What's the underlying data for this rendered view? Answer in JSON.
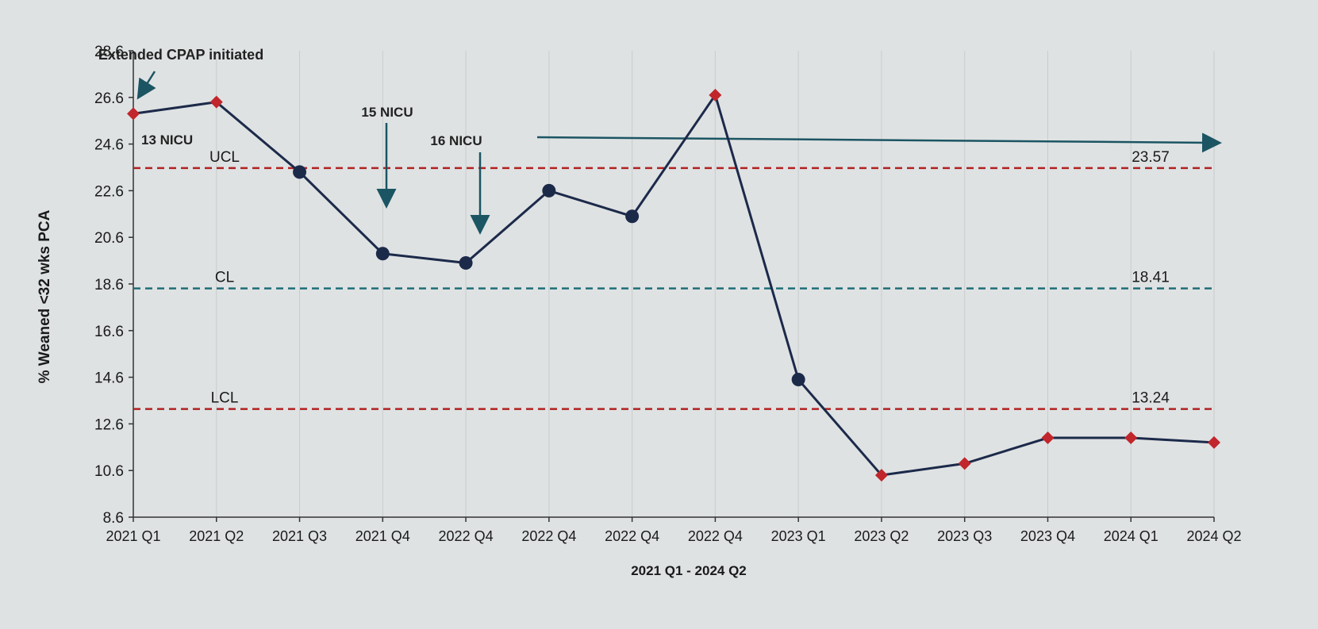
{
  "chart_data": {
    "type": "line",
    "xlabel": "2021 Q1 - 2024 Q2",
    "ylabel": "% Weaned <32 wks PCA",
    "ylim": [
      8.6,
      28.6
    ],
    "yticks": [
      "28.6",
      "26.6",
      "24.6",
      "22.6",
      "20.6",
      "18.6",
      "16.6",
      "14.6",
      "12.6",
      "10.6",
      "8.6"
    ],
    "categories": [
      "2021 Q1",
      "2021 Q2",
      "2021 Q3",
      "2021 Q4",
      "2022 Q4",
      "2022 Q4",
      "2022 Q4",
      "2022 Q4",
      "2023 Q1",
      "2023 Q2",
      "2023 Q3",
      "2023 Q4",
      "2024 Q1",
      "2024 Q2"
    ],
    "series": [
      {
        "values": [
          25.9,
          26.4,
          23.4,
          19.9,
          19.5,
          22.6,
          21.5,
          26.7,
          14.5,
          10.4,
          10.9,
          12.0,
          12.0,
          11.8
        ],
        "markers": [
          "diamond",
          "diamond",
          "circle",
          "circle",
          "circle",
          "circle",
          "circle",
          "diamond",
          "circle",
          "diamond",
          "diamond",
          "diamond",
          "diamond",
          "diamond"
        ]
      }
    ],
    "control_lines": [
      {
        "label": "UCL",
        "value": 23.57,
        "value_label": "23.57",
        "color": "#b22222"
      },
      {
        "label": "CL",
        "value": 18.41,
        "value_label": "18.41",
        "color": "#1f6f78"
      },
      {
        "label": "LCL",
        "value": 13.24,
        "value_label": "13.24",
        "color": "#b22222"
      }
    ],
    "annotations": {
      "extended_cpap": "Extended CPAP initiated",
      "nicu13": "13 NICU",
      "nicu15": "15 NICU",
      "nicu16": "16 NICU"
    },
    "grid": true,
    "legend": "none"
  }
}
